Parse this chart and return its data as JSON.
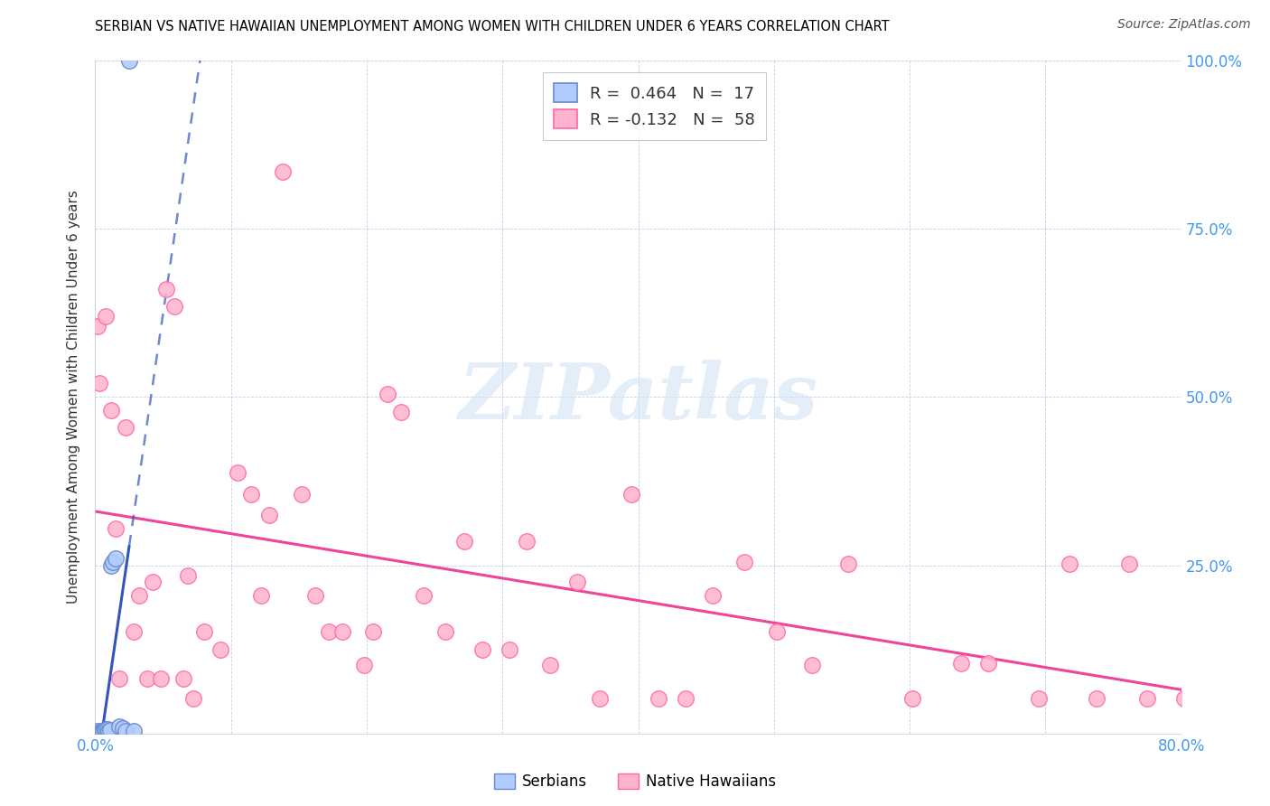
{
  "title": "SERBIAN VS NATIVE HAWAIIAN UNEMPLOYMENT AMONG WOMEN WITH CHILDREN UNDER 6 YEARS CORRELATION CHART",
  "source": "Source: ZipAtlas.com",
  "ylabel": "Unemployment Among Women with Children Under 6 years",
  "xlim": [
    0,
    0.8
  ],
  "ylim": [
    0,
    1.0
  ],
  "serbian_R": 0.464,
  "serbian_N": 17,
  "hawaiian_R": -0.132,
  "hawaiian_N": 58,
  "serbian_color": "#b3ccff",
  "serbian_edge_color": "#6688cc",
  "hawaiian_color": "#ffb3cc",
  "hawaiian_edge_color": "#ff66aa",
  "trend_serbian_color": "#3355bb",
  "trend_hawaiian_color": "#ee4499",
  "watermark_text": "ZIPatlas",
  "serbian_x": [
    0.002,
    0.004,
    0.005,
    0.006,
    0.007,
    0.008,
    0.009,
    0.01,
    0.011,
    0.012,
    0.013,
    0.015,
    0.018,
    0.02,
    0.022,
    0.025,
    0.028
  ],
  "serbian_y": [
    0.003,
    0.002,
    0.004,
    0.003,
    0.005,
    0.006,
    0.007,
    0.003,
    0.005,
    0.25,
    0.255,
    0.26,
    0.01,
    0.008,
    0.004,
    1.0,
    0.003
  ],
  "hawaiian_x": [
    0.002,
    0.003,
    0.008,
    0.012,
    0.015,
    0.018,
    0.022,
    0.028,
    0.032,
    0.038,
    0.042,
    0.048,
    0.052,
    0.058,
    0.065,
    0.068,
    0.072,
    0.08,
    0.092,
    0.105,
    0.115,
    0.122,
    0.128,
    0.138,
    0.152,
    0.162,
    0.172,
    0.182,
    0.198,
    0.205,
    0.215,
    0.225,
    0.242,
    0.258,
    0.272,
    0.285,
    0.305,
    0.318,
    0.335,
    0.355,
    0.372,
    0.395,
    0.415,
    0.435,
    0.455,
    0.478,
    0.502,
    0.528,
    0.555,
    0.602,
    0.638,
    0.658,
    0.695,
    0.718,
    0.738,
    0.762,
    0.775,
    0.802
  ],
  "hawaiian_y": [
    0.605,
    0.52,
    0.62,
    0.48,
    0.305,
    0.082,
    0.455,
    0.152,
    0.205,
    0.082,
    0.225,
    0.082,
    0.66,
    0.635,
    0.082,
    0.235,
    0.052,
    0.152,
    0.125,
    0.388,
    0.355,
    0.205,
    0.325,
    0.835,
    0.355,
    0.205,
    0.152,
    0.152,
    0.102,
    0.152,
    0.505,
    0.478,
    0.205,
    0.152,
    0.285,
    0.125,
    0.125,
    0.285,
    0.102,
    0.225,
    0.052,
    0.355,
    0.052,
    0.052,
    0.205,
    0.255,
    0.152,
    0.102,
    0.252,
    0.052,
    0.105,
    0.105,
    0.052,
    0.252,
    0.052,
    0.252,
    0.052,
    0.052
  ]
}
